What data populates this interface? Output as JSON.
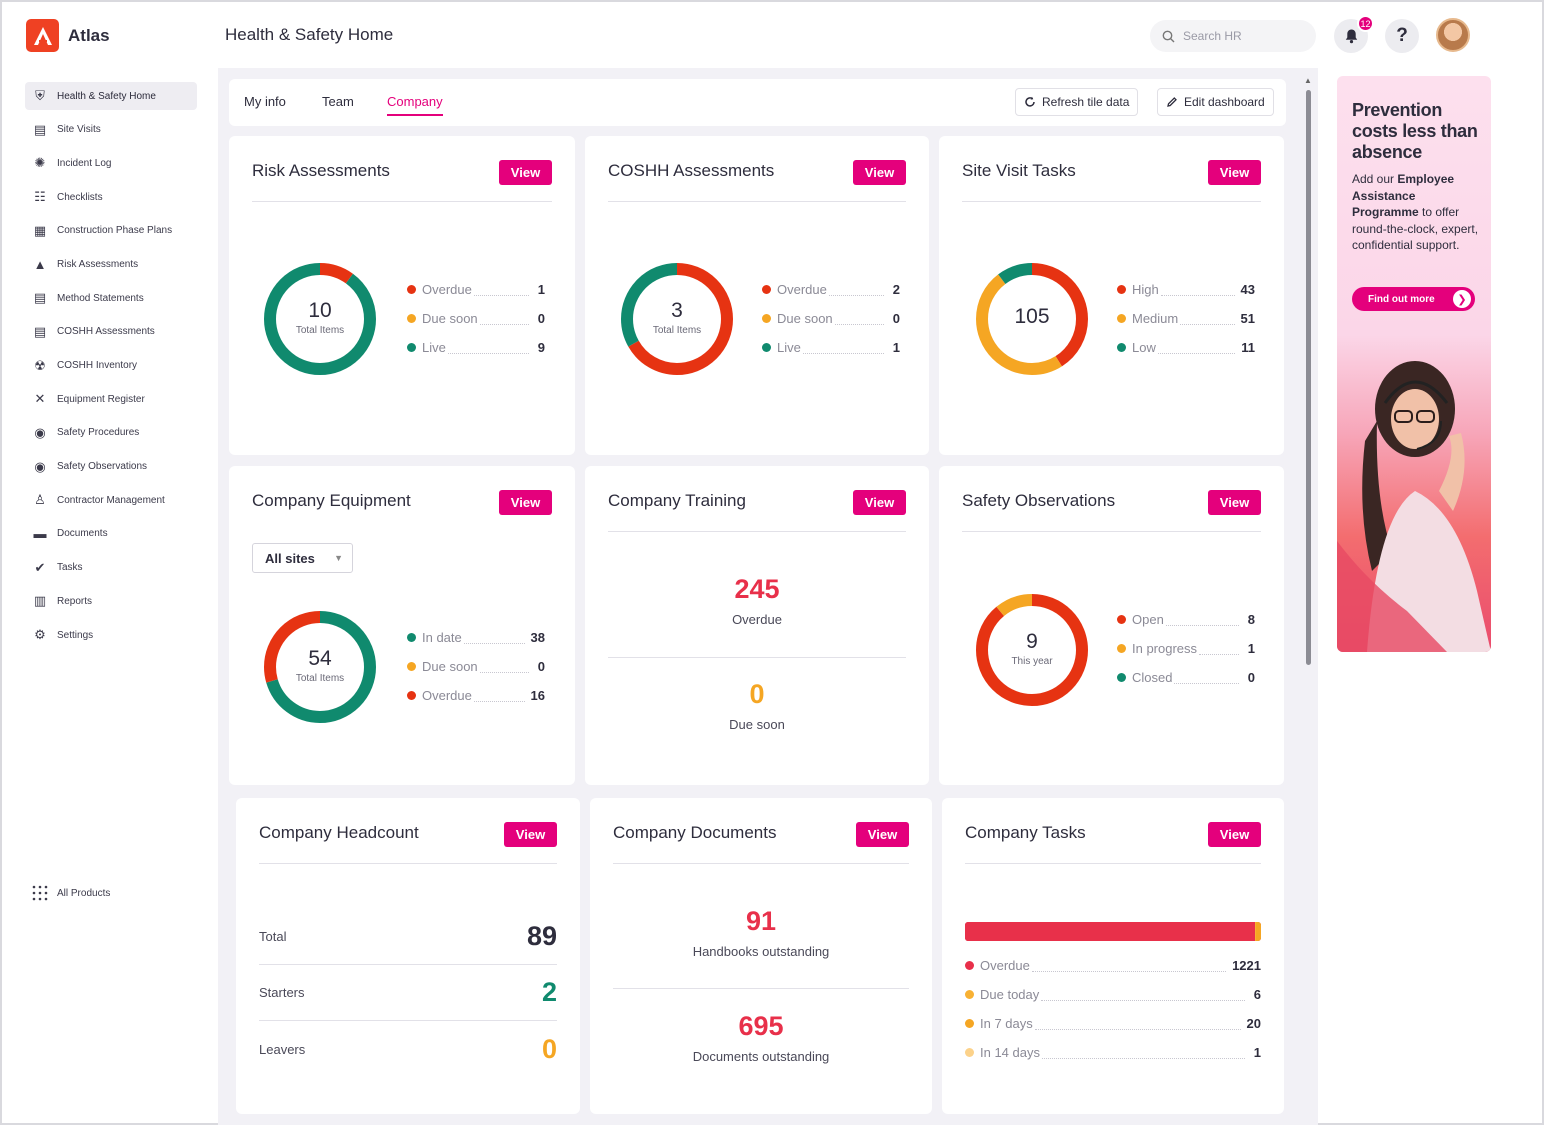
{
  "app": {
    "name": "Atlas",
    "page_title": "Health & Safety Home"
  },
  "header": {
    "search_placeholder": "Search HR",
    "notification_count": "12",
    "help_label": "?"
  },
  "sidebar": {
    "items": [
      {
        "label": "Health & Safety Home",
        "icon": "shield-icon",
        "active": true
      },
      {
        "label": "Site Visits",
        "icon": "site-visit-icon"
      },
      {
        "label": "Incident Log",
        "icon": "incident-icon"
      },
      {
        "label": "Checklists",
        "icon": "checklist-icon"
      },
      {
        "label": "Construction Phase Plans",
        "icon": "plan-icon"
      },
      {
        "label": "Risk Assessments",
        "icon": "warning-icon"
      },
      {
        "label": "Method Statements",
        "icon": "method-icon"
      },
      {
        "label": "COSHH Assessments",
        "icon": "coshh-icon"
      },
      {
        "label": "COSHH Inventory",
        "icon": "hazard-icon"
      },
      {
        "label": "Equipment Register",
        "icon": "tools-icon"
      },
      {
        "label": "Safety Procedures",
        "icon": "procedure-icon"
      },
      {
        "label": "Safety Observations",
        "icon": "eye-icon"
      },
      {
        "label": "Contractor Management",
        "icon": "contractor-icon"
      },
      {
        "label": "Documents",
        "icon": "folder-icon"
      },
      {
        "label": "Tasks",
        "icon": "task-check-icon"
      },
      {
        "label": "Reports",
        "icon": "bar-chart-icon"
      },
      {
        "label": "Settings",
        "icon": "gear-icon"
      }
    ],
    "all_products": "All Products"
  },
  "tabs": [
    {
      "label": "My info"
    },
    {
      "label": "Team"
    },
    {
      "label": "Company",
      "active": true
    }
  ],
  "toolbar": {
    "refresh_label": "Refresh tile data",
    "edit_label": "Edit dashboard"
  },
  "colors": {
    "accent": "#e4007c",
    "red": "#e63312",
    "orange": "#f5a623",
    "green": "#108a6e",
    "task_red": "#e8304a",
    "yellow": "#f8b133",
    "light_yellow": "#fcd28a"
  },
  "tiles": {
    "risk": {
      "title": "Risk Assessments",
      "view": "View",
      "center_value": "10",
      "center_label": "Total Items",
      "legend": [
        {
          "label": "Overdue",
          "value": "1",
          "color": "#e63312"
        },
        {
          "label": "Due soon",
          "value": "0",
          "color": "#f5a623"
        },
        {
          "label": "Live",
          "value": "9",
          "color": "#108a6e"
        }
      ]
    },
    "coshh": {
      "title": "COSHH Assessments",
      "view": "View",
      "center_value": "3",
      "center_label": "Total Items",
      "legend": [
        {
          "label": "Overdue",
          "value": "2",
          "color": "#e63312"
        },
        {
          "label": "Due soon",
          "value": "0",
          "color": "#f5a623"
        },
        {
          "label": "Live",
          "value": "1",
          "color": "#108a6e"
        }
      ]
    },
    "site_visit": {
      "title": "Site Visit Tasks",
      "view": "View",
      "center_value": "105",
      "legend": [
        {
          "label": "High",
          "value": "43",
          "color": "#e63312"
        },
        {
          "label": "Medium",
          "value": "51",
          "color": "#f5a623"
        },
        {
          "label": "Low",
          "value": "11",
          "color": "#108a6e"
        }
      ]
    },
    "equipment": {
      "title": "Company Equipment",
      "view": "View",
      "filter": "All sites",
      "center_value": "54",
      "center_label": "Total Items",
      "legend": [
        {
          "label": "In date",
          "value": "38",
          "color": "#108a6e"
        },
        {
          "label": "Due soon",
          "value": "0",
          "color": "#f5a623"
        },
        {
          "label": "Overdue",
          "value": "16",
          "color": "#e63312"
        }
      ]
    },
    "training": {
      "title": "Company Training",
      "view": "View",
      "overdue_value": "245",
      "overdue_label": "Overdue",
      "due_value": "0",
      "due_label": "Due soon"
    },
    "observations": {
      "title": "Safety Observations",
      "view": "View",
      "center_value": "9",
      "center_label": "This year",
      "legend": [
        {
          "label": "Open",
          "value": "8",
          "color": "#e63312"
        },
        {
          "label": "In progress",
          "value": "1",
          "color": "#f5a623"
        },
        {
          "label": "Closed",
          "value": "0",
          "color": "#108a6e"
        }
      ]
    },
    "headcount": {
      "title": "Company Headcount",
      "view": "View",
      "rows": [
        {
          "label": "Total",
          "value": "89",
          "color": "#2e2d3d"
        },
        {
          "label": "Starters",
          "value": "2",
          "color": "#108a6e"
        },
        {
          "label": "Leavers",
          "value": "0",
          "color": "#f5a623"
        }
      ]
    },
    "documents": {
      "title": "Company Documents",
      "view": "View",
      "handbooks_value": "91",
      "handbooks_label": "Handbooks outstanding",
      "docs_value": "695",
      "docs_label": "Documents outstanding"
    },
    "tasks": {
      "title": "Company Tasks",
      "view": "View",
      "legend": [
        {
          "label": "Overdue",
          "value": "1221",
          "color": "#e8304a"
        },
        {
          "label": "Due today",
          "value": "6",
          "color": "#f8b133"
        },
        {
          "label": "In 7 days",
          "value": "20",
          "color": "#f5a623"
        },
        {
          "label": "In 14 days",
          "value": "1",
          "color": "#fcd28a"
        }
      ]
    }
  },
  "ad": {
    "title": "Prevention costs less than absence",
    "body_pre": "Add our ",
    "body_bold": "Employee Assistance Programme",
    "body_post": " to offer round-the-clock, expert, confidential support.",
    "button": "Find out more"
  }
}
